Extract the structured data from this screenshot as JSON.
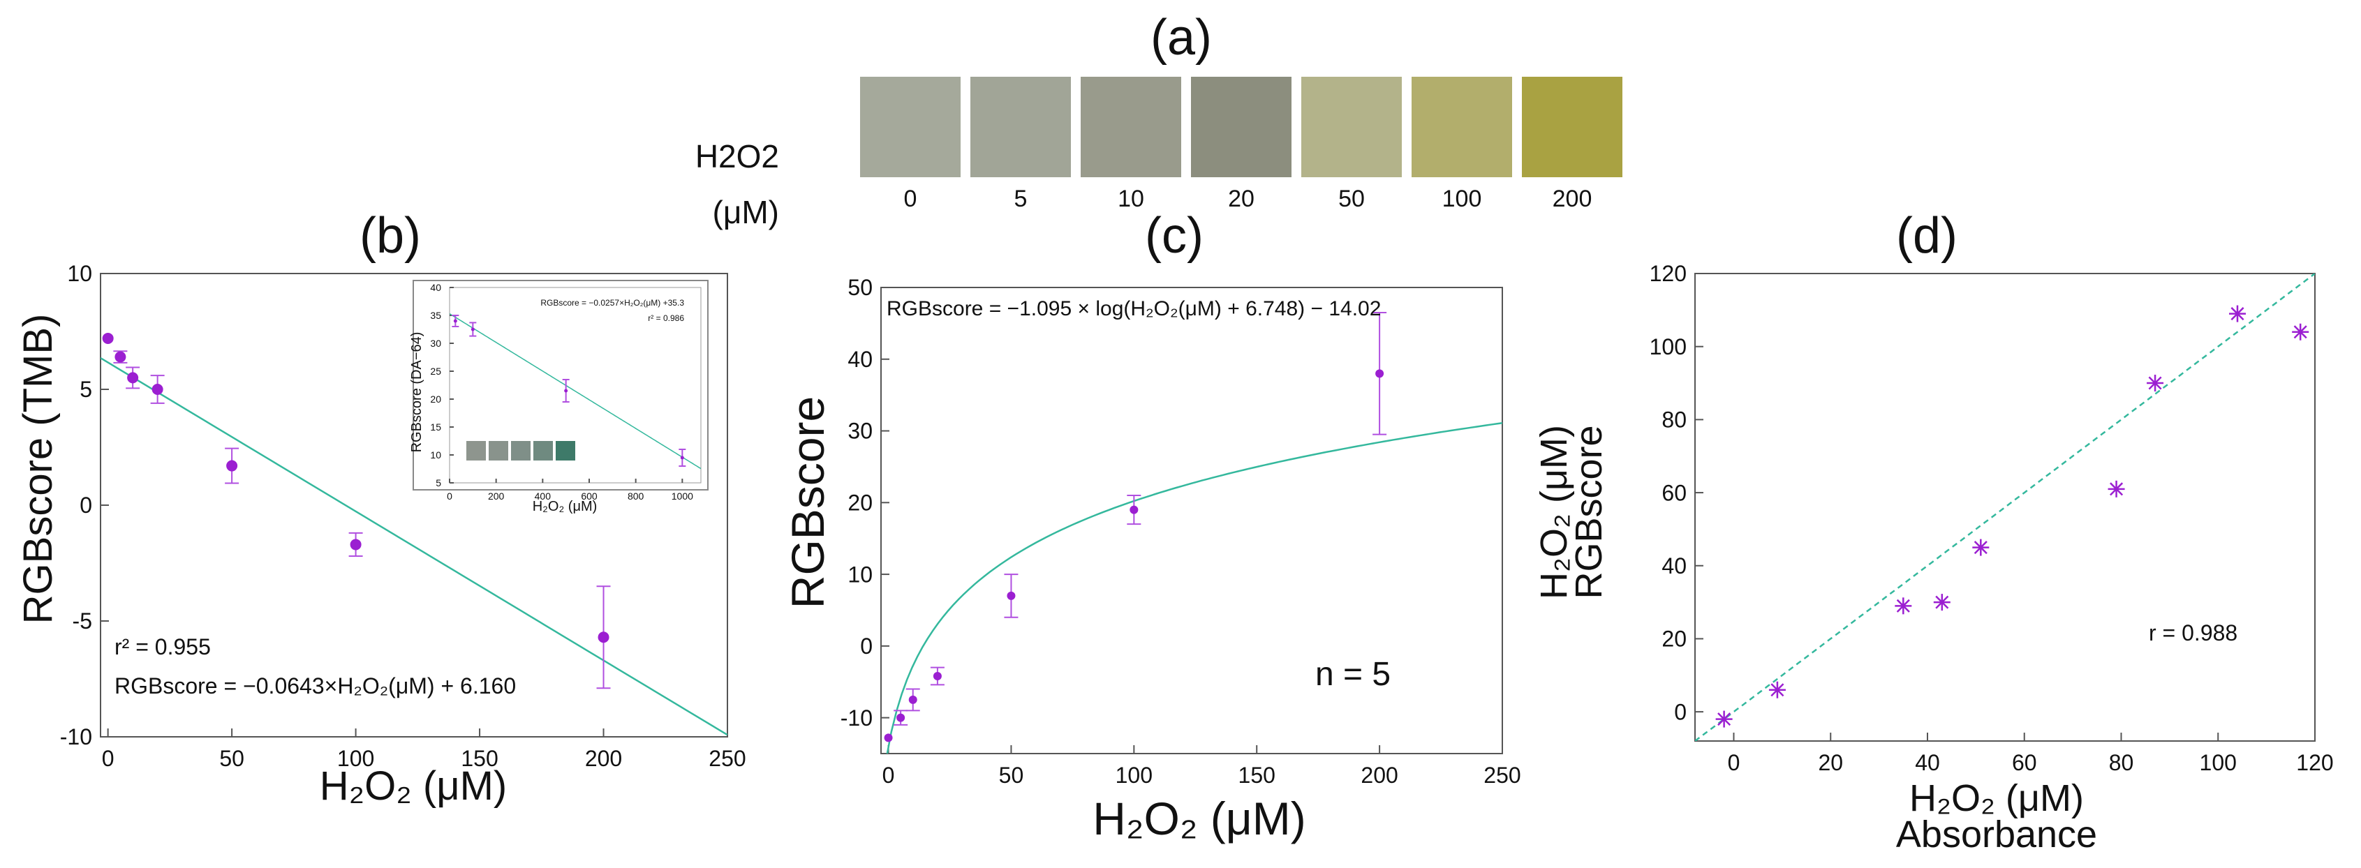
{
  "swatch_panel": {
    "label": "(a)",
    "reagent_label": "H2O2",
    "unit_label": "(μM)",
    "swatches": [
      {
        "concentration": "0",
        "color": "#a5a99b"
      },
      {
        "concentration": "5",
        "color": "#a1a597"
      },
      {
        "concentration": "10",
        "color": "#999b8c"
      },
      {
        "concentration": "20",
        "color": "#8c8e7e"
      },
      {
        "concentration": "50",
        "color": "#b3b38a"
      },
      {
        "concentration": "100",
        "color": "#b2ae6c"
      },
      {
        "concentration": "200",
        "color": "#a9a242"
      }
    ]
  },
  "colors": {
    "fit_line": "#34b89d",
    "data_point": "#9b1fd1",
    "error_bar": "#b04fe0",
    "axis": "#555555",
    "inset_swatches": [
      "#8e958e",
      "#89938c",
      "#7f8f88",
      "#6f8a80",
      "#3e7a69"
    ]
  },
  "chart_data": [
    {
      "id": "b",
      "panel_label": "(b)",
      "type": "scatter",
      "xlabel": "H₂O₂ (μM)",
      "ylabel": "RGBscore (TMB)",
      "xlim": [
        -3,
        250
      ],
      "ylim": [
        -10,
        10
      ],
      "xticks": [
        0,
        50,
        100,
        150,
        200,
        250
      ],
      "yticks": [
        -10,
        -5,
        0,
        5,
        10
      ],
      "points": [
        {
          "x": 0,
          "y": 7.2,
          "err": 0.0
        },
        {
          "x": 5,
          "y": 6.4,
          "err": 0.25
        },
        {
          "x": 10,
          "y": 5.5,
          "err": 0.45
        },
        {
          "x": 20,
          "y": 5.0,
          "err": 0.6
        },
        {
          "x": 50,
          "y": 1.7,
          "err": 0.75
        },
        {
          "x": 100,
          "y": -1.7,
          "err": 0.5
        },
        {
          "x": 200,
          "y": -5.7,
          "err": 2.2
        }
      ],
      "fit": {
        "type": "linear",
        "slope": -0.0643,
        "intercept": 6.16
      },
      "annotations": [
        "r² = 0.955",
        "RGBscore = −0.0643×H₂O₂(μM) + 6.160"
      ],
      "inset": {
        "type": "scatter",
        "xlabel": "H₂O₂ (μM)",
        "ylabel": "RGBscore (DA−64)",
        "xlim": [
          0,
          1080
        ],
        "ylim": [
          5,
          40
        ],
        "xticks": [
          0,
          200,
          400,
          600,
          800,
          1000
        ],
        "yticks": [
          5,
          10,
          15,
          20,
          25,
          30,
          35,
          40
        ],
        "points": [
          {
            "x": 25,
            "y": 34.0,
            "err": 1.0
          },
          {
            "x": 100,
            "y": 32.5,
            "err": 1.2
          },
          {
            "x": 500,
            "y": 21.5,
            "err": 2.0
          },
          {
            "x": 1000,
            "y": 9.5,
            "err": 1.5
          }
        ],
        "fit": {
          "type": "linear",
          "slope": -0.0257,
          "intercept": 35.3
        },
        "annotations": [
          "RGBscore = −0.0257×H₂O₂(μM) +35.3",
          "r² = 0.986"
        ]
      }
    },
    {
      "id": "c",
      "panel_label": "(c)",
      "type": "scatter",
      "xlabel": "H₂O₂ (μM)",
      "ylabel": "RGBscore",
      "xlim": [
        -3,
        250
      ],
      "ylim": [
        -15,
        50
      ],
      "xticks": [
        0,
        50,
        100,
        150,
        200,
        250
      ],
      "yticks": [
        -10,
        0,
        10,
        20,
        30,
        40,
        50
      ],
      "points": [
        {
          "x": 0,
          "y": -12.8,
          "err": 0.0
        },
        {
          "x": 5,
          "y": -10.0,
          "err": 1.0
        },
        {
          "x": 10,
          "y": -7.5,
          "err": 1.5
        },
        {
          "x": 20,
          "y": -4.2,
          "err": 1.2
        },
        {
          "x": 50,
          "y": 7.0,
          "err": 3.0
        },
        {
          "x": 100,
          "y": 19.0,
          "err": 2.0
        },
        {
          "x": 200,
          "y": 38.0,
          "err": 8.5
        }
      ],
      "fit": {
        "type": "log",
        "a": -1.095,
        "b": 6.748,
        "c": -14.02
      },
      "annotations": [
        "RGBscore = −1.095 × log(H₂O₂(μM) + 6.748) − 14.02",
        "n = 5"
      ]
    },
    {
      "id": "d",
      "panel_label": "(d)",
      "type": "scatter",
      "xlabel": "H₂O₂ (μM)",
      "xlabel2": "Absorbance",
      "ylabel": "H₂O₂ (μM)",
      "ylabel2": "RGBscore",
      "xlim": [
        -8,
        120
      ],
      "ylim": [
        -8,
        120
      ],
      "xticks": [
        0,
        20,
        40,
        60,
        80,
        100,
        120
      ],
      "yticks": [
        0,
        20,
        40,
        60,
        80,
        100,
        120
      ],
      "points": [
        {
          "x": -2,
          "y": -2
        },
        {
          "x": 9,
          "y": 6
        },
        {
          "x": 35,
          "y": 29
        },
        {
          "x": 43,
          "y": 30
        },
        {
          "x": 51,
          "y": 45
        },
        {
          "x": 79,
          "y": 61
        },
        {
          "x": 87,
          "y": 90
        },
        {
          "x": 104,
          "y": 109
        },
        {
          "x": 117,
          "y": 104
        }
      ],
      "fit": {
        "type": "identity"
      },
      "annotations": [
        "r = 0.988"
      ]
    }
  ]
}
